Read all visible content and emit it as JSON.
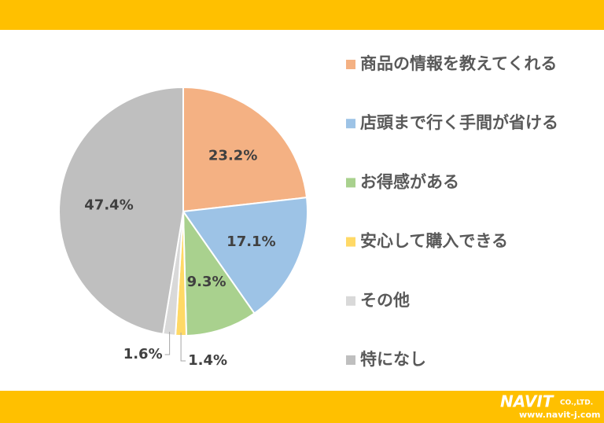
{
  "chart_data": {
    "type": "pie",
    "categories": [
      "商品の情報を教えてくれる",
      "店頭まで行く手間が省ける",
      "お得感がある",
      "安心して購入できる",
      "その他",
      "特になし"
    ],
    "values": [
      23.2,
      17.1,
      9.3,
      1.4,
      1.6,
      47.4
    ],
    "value_labels": [
      "23.2%",
      "17.1%",
      "9.3%",
      "1.4%",
      "1.6%",
      "47.4%"
    ],
    "colors": [
      "#f4b183",
      "#9dc3e6",
      "#a9d18e",
      "#ffd966",
      "#d9d9d9",
      "#bfbfbf"
    ],
    "legend": "right"
  },
  "logo": {
    "name": "NAVIT",
    "suffix": "CO.,LTD.",
    "url": "www.navit-j.com"
  }
}
